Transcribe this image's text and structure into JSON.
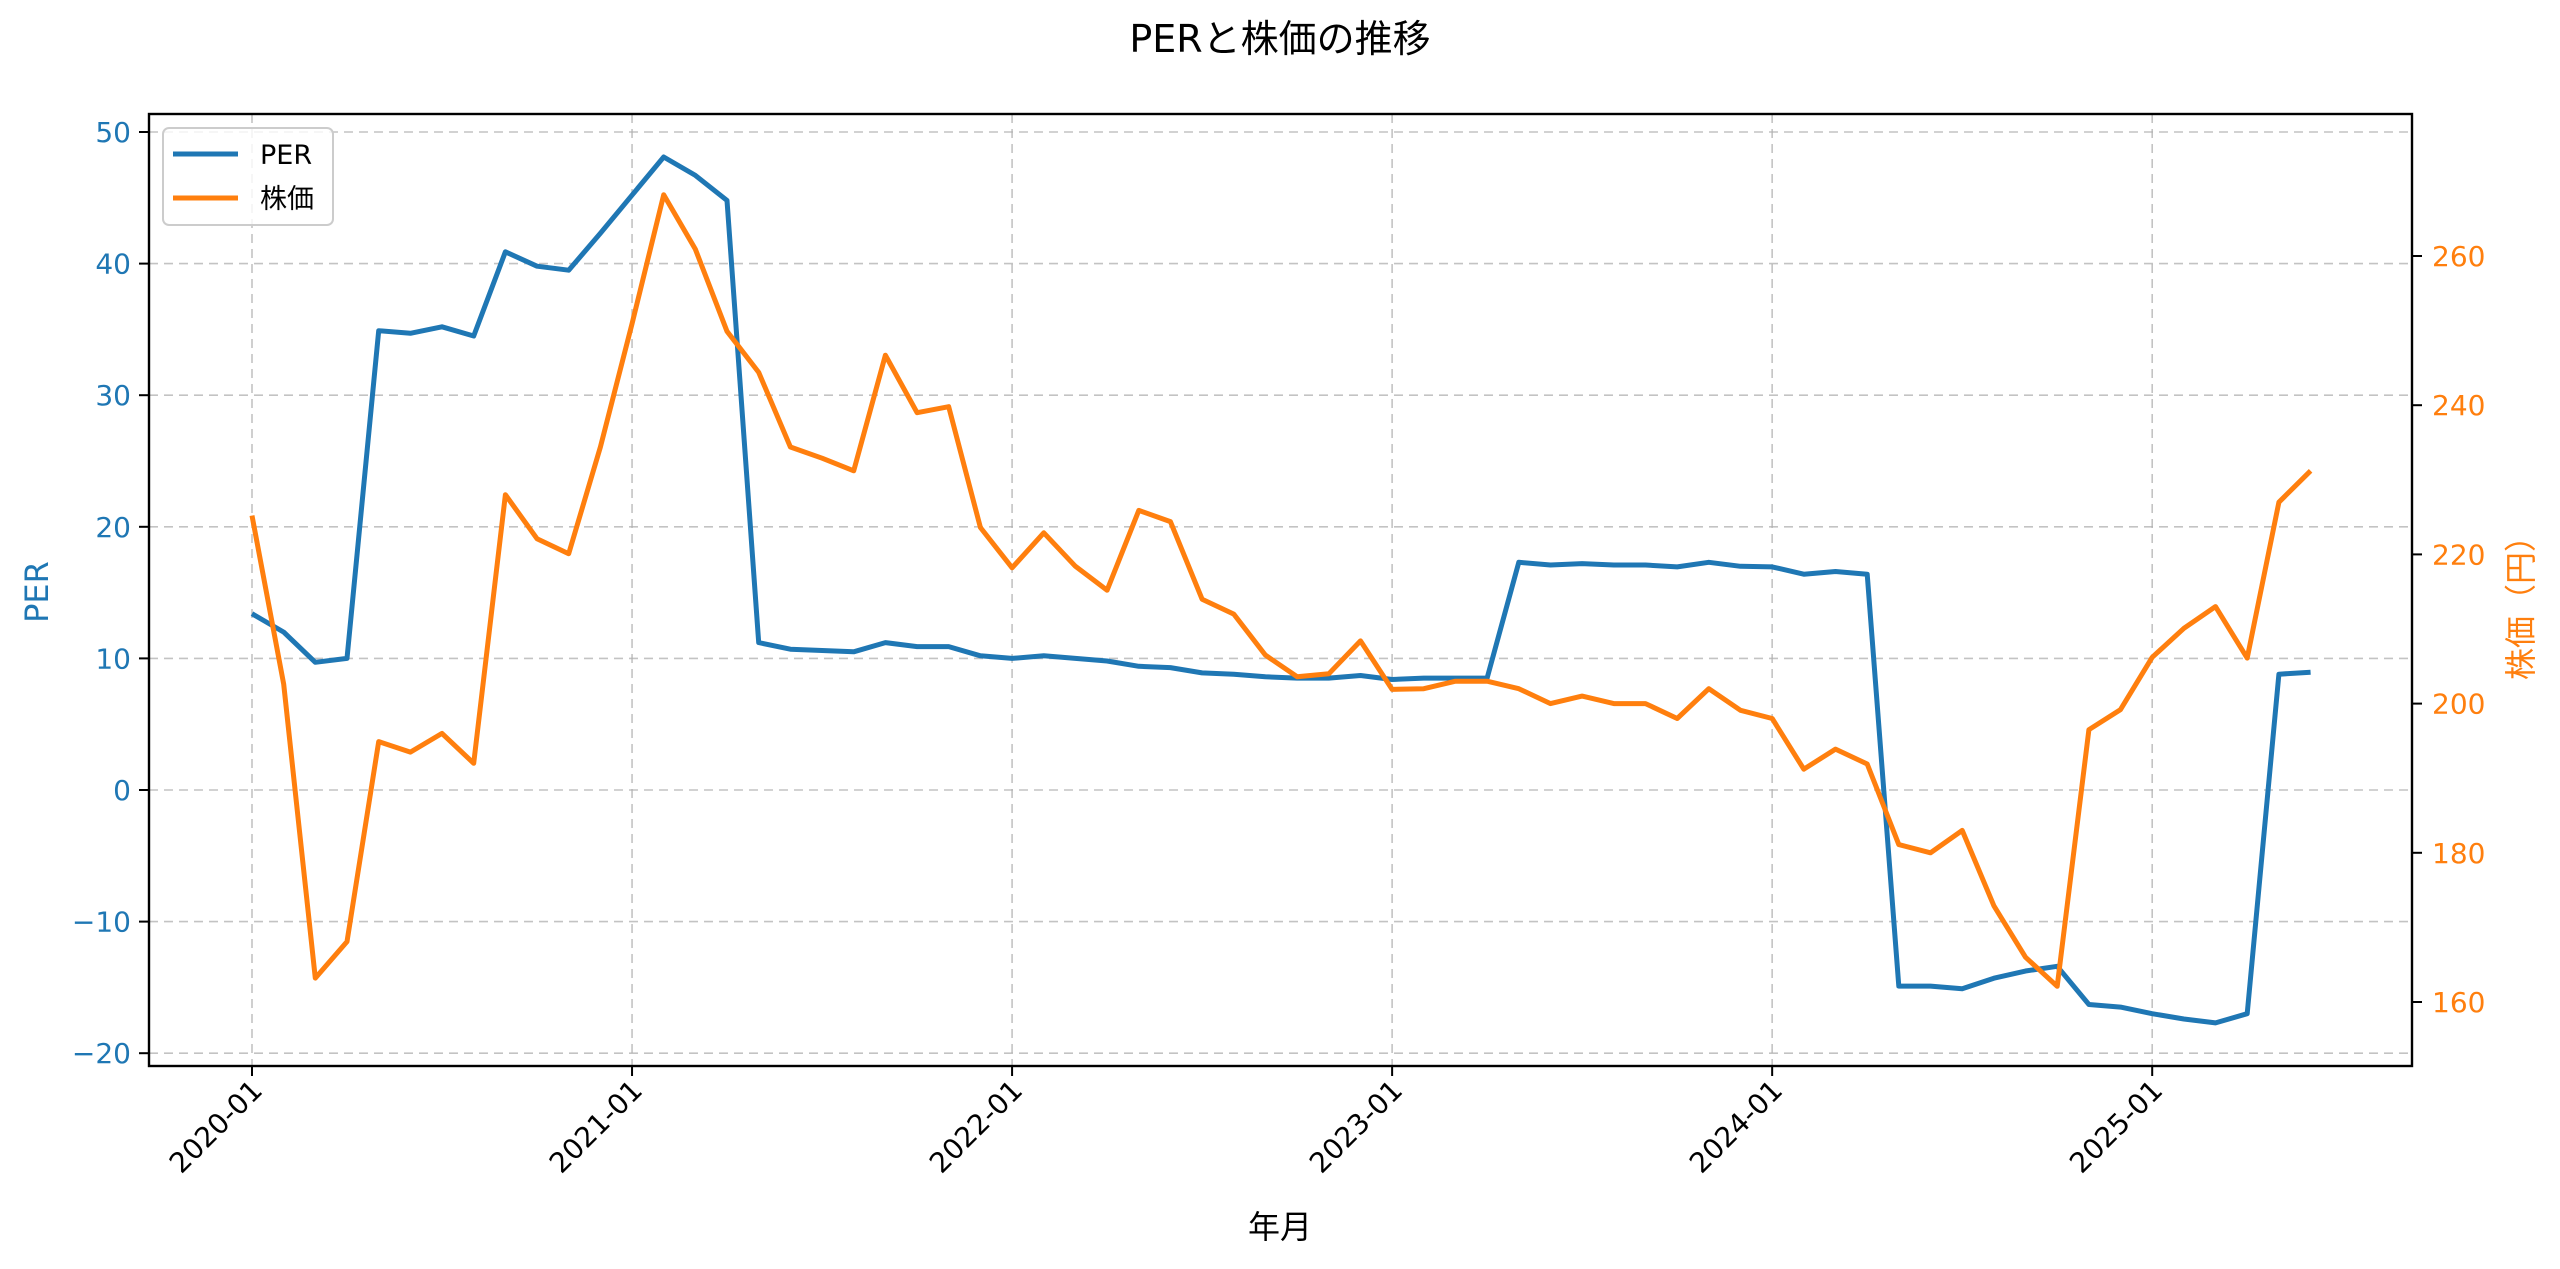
{
  "chart_data": {
    "type": "line",
    "title": "PERと株価の推移",
    "xlabel": "年月",
    "ylabel_left": "PER",
    "ylabel_right": "株価（円）",
    "x_ticks": [
      "2020-01",
      "2021-01",
      "2022-01",
      "2023-01",
      "2024-01",
      "2025-01"
    ],
    "y_left_ticks": [
      50,
      40,
      30,
      20,
      10,
      0,
      -10,
      -20
    ],
    "y_right_ticks": [
      260,
      240,
      220,
      200,
      180,
      160
    ],
    "y_left_lim": [
      -21,
      51.4
    ],
    "y_right_lim": [
      151.5,
      278
    ],
    "grid": true,
    "legend_position": "upper left",
    "x": [
      "2020-01",
      "2020-02",
      "2020-03",
      "2020-04",
      "2020-05",
      "2020-06",
      "2020-07",
      "2020-08",
      "2020-09",
      "2020-10",
      "2020-11",
      "2020-12",
      "2021-01",
      "2021-02",
      "2021-03",
      "2021-04",
      "2021-05",
      "2021-06",
      "2021-07",
      "2021-08",
      "2021-09",
      "2021-10",
      "2021-11",
      "2021-12",
      "2022-01",
      "2022-02",
      "2022-03",
      "2022-04",
      "2022-05",
      "2022-06",
      "2022-07",
      "2022-08",
      "2022-09",
      "2022-10",
      "2022-11",
      "2022-12",
      "2023-01",
      "2023-02",
      "2023-03",
      "2023-04",
      "2023-05",
      "2023-06",
      "2023-07",
      "2023-08",
      "2023-09",
      "2023-10",
      "2023-11",
      "2023-12",
      "2024-01",
      "2024-02",
      "2024-03",
      "2024-04",
      "2024-05",
      "2024-06",
      "2024-07",
      "2024-08",
      "2024-09",
      "2024-10",
      "2024-11",
      "2024-12",
      "2025-01",
      "2025-02",
      "2025-03",
      "2025-04",
      "2025-05",
      "2025-06"
    ],
    "series": [
      {
        "name": "PER",
        "axis": "left",
        "color": "#1f77b4",
        "values": [
          13.4,
          12.0,
          9.7,
          10.0,
          34.9,
          34.7,
          35.2,
          34.5,
          40.9,
          39.8,
          39.5,
          42.3,
          45.2,
          48.1,
          46.7,
          44.8,
          11.2,
          10.7,
          10.6,
          10.5,
          11.2,
          10.9,
          10.9,
          10.2,
          10.0,
          10.2,
          10.0,
          9.8,
          9.4,
          9.3,
          8.9,
          8.8,
          8.6,
          8.5,
          8.5,
          8.7,
          8.4,
          8.5,
          8.5,
          8.5,
          17.3,
          17.1,
          17.2,
          17.1,
          17.1,
          16.95,
          17.3,
          17.0,
          16.95,
          16.4,
          16.6,
          16.4,
          -14.9,
          -14.9,
          -15.1,
          -14.3,
          -13.75,
          -13.4,
          -16.3,
          -16.5,
          -17.0,
          -17.4,
          -17.7,
          -17.0,
          8.8,
          8.95
        ]
      },
      {
        "name": "株価",
        "axis": "right",
        "color": "#ff7f0e",
        "values": [
          225.2,
          202.6,
          163.2,
          168.1,
          194.9,
          193.5,
          196.0,
          192.0,
          228.0,
          222.1,
          220.1,
          234.4,
          250.9,
          268.2,
          260.9,
          249.9,
          244.4,
          234.4,
          232.9,
          231.2,
          246.7,
          239.0,
          239.8,
          223.6,
          218.2,
          222.9,
          218.4,
          215.2,
          225.9,
          224.4,
          214.0,
          212.0,
          206.5,
          203.6,
          204.0,
          208.4,
          201.9,
          202.0,
          203.0,
          203.0,
          202.0,
          200.0,
          201.0,
          200.0,
          200.0,
          198.0,
          202.0,
          199.1,
          198.0,
          191.2,
          193.9,
          191.9,
          181.1,
          180.0,
          183.0,
          172.9,
          166.0,
          162.1,
          196.5,
          199.2,
          206.2,
          210.1,
          213.0,
          206.1,
          227.0,
          231.2
        ]
      }
    ]
  },
  "legend": {
    "items": [
      {
        "label": "PER",
        "color": "#1f77b4"
      },
      {
        "label": "株価",
        "color": "#ff7f0e"
      }
    ]
  },
  "colors": {
    "left_axis": "#1f77b4",
    "right_axis": "#ff7f0e",
    "grid": "#b0b0b0",
    "frame": "#000000"
  }
}
